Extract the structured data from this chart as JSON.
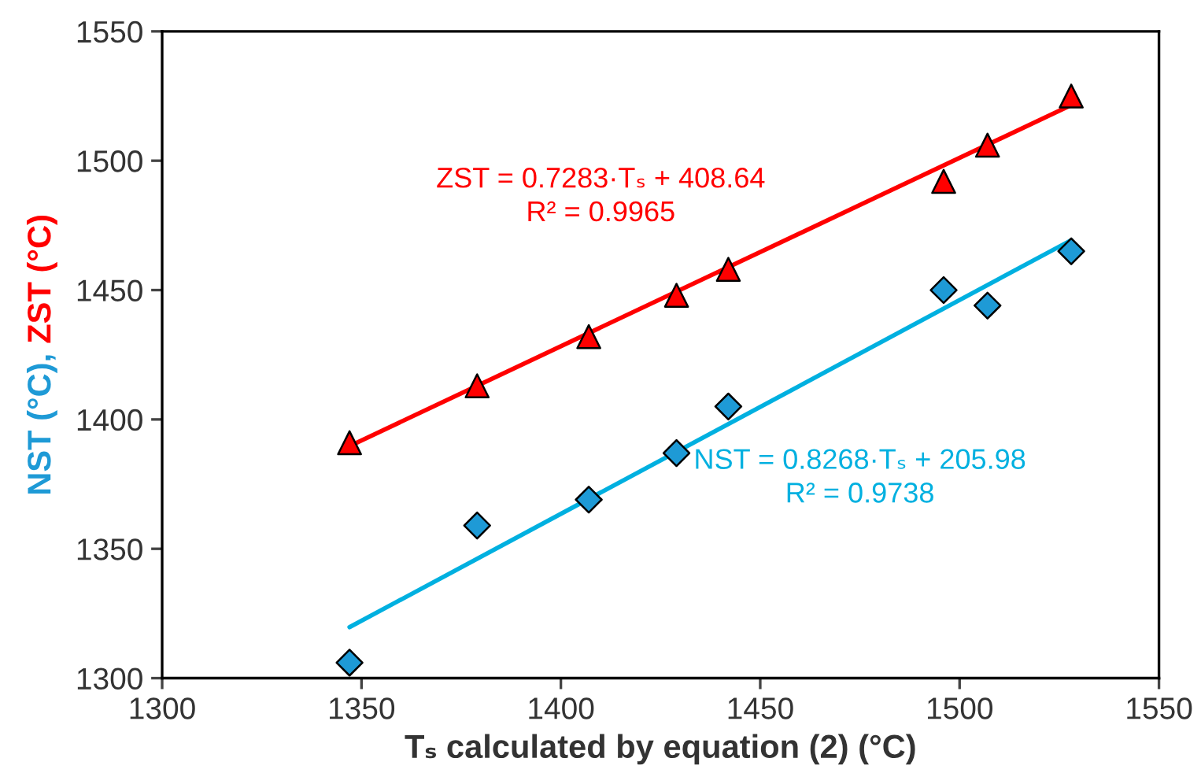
{
  "chart_data": {
    "type": "scatter",
    "xlabel": "Tₛ calculated by equation (2) (°C)",
    "ylabel": "NST (°C), ZST (°C)",
    "xlim": [
      1300,
      1550
    ],
    "xticks": [
      1300,
      1350,
      1400,
      1450,
      1500,
      1550
    ],
    "ylim": [
      1300,
      1550
    ],
    "yticks": [
      1300,
      1350,
      1400,
      1450,
      1500,
      1550
    ],
    "grid": false,
    "legend": false,
    "series": [
      {
        "type": "line",
        "color": "#ff0000",
        "x": [
          1347,
          1528
        ],
        "values": [
          1389.7,
          1521.5
        ],
        "marker": "none"
      },
      {
        "type": "line",
        "color": "#00b0e0",
        "x": [
          1347,
          1528
        ],
        "values": [
          1319.7,
          1469.3
        ],
        "marker": "none"
      },
      {
        "color": "#ff0000",
        "marker": "triangle",
        "x": [
          1347,
          1379,
          1407,
          1429,
          1442,
          1496,
          1507,
          1528
        ],
        "values": [
          1391,
          1413,
          1432,
          1448,
          1458,
          1492,
          1506,
          1525
        ]
      },
      {
        "color": "#1e9ad6",
        "marker": "diamond",
        "x": [
          1347,
          1379,
          1407,
          1429,
          1442,
          1496,
          1507,
          1528
        ],
        "values": [
          1306,
          1359,
          1369,
          1387,
          1405,
          1450,
          1444,
          1465
        ]
      }
    ],
    "annotations": [
      "ZST = 0.7283·Tₛ + 408.64",
      "R² = 0.9965",
      "NST = 0.8268·Tₛ + 205.98",
      "R² = 0.9738"
    ]
  }
}
